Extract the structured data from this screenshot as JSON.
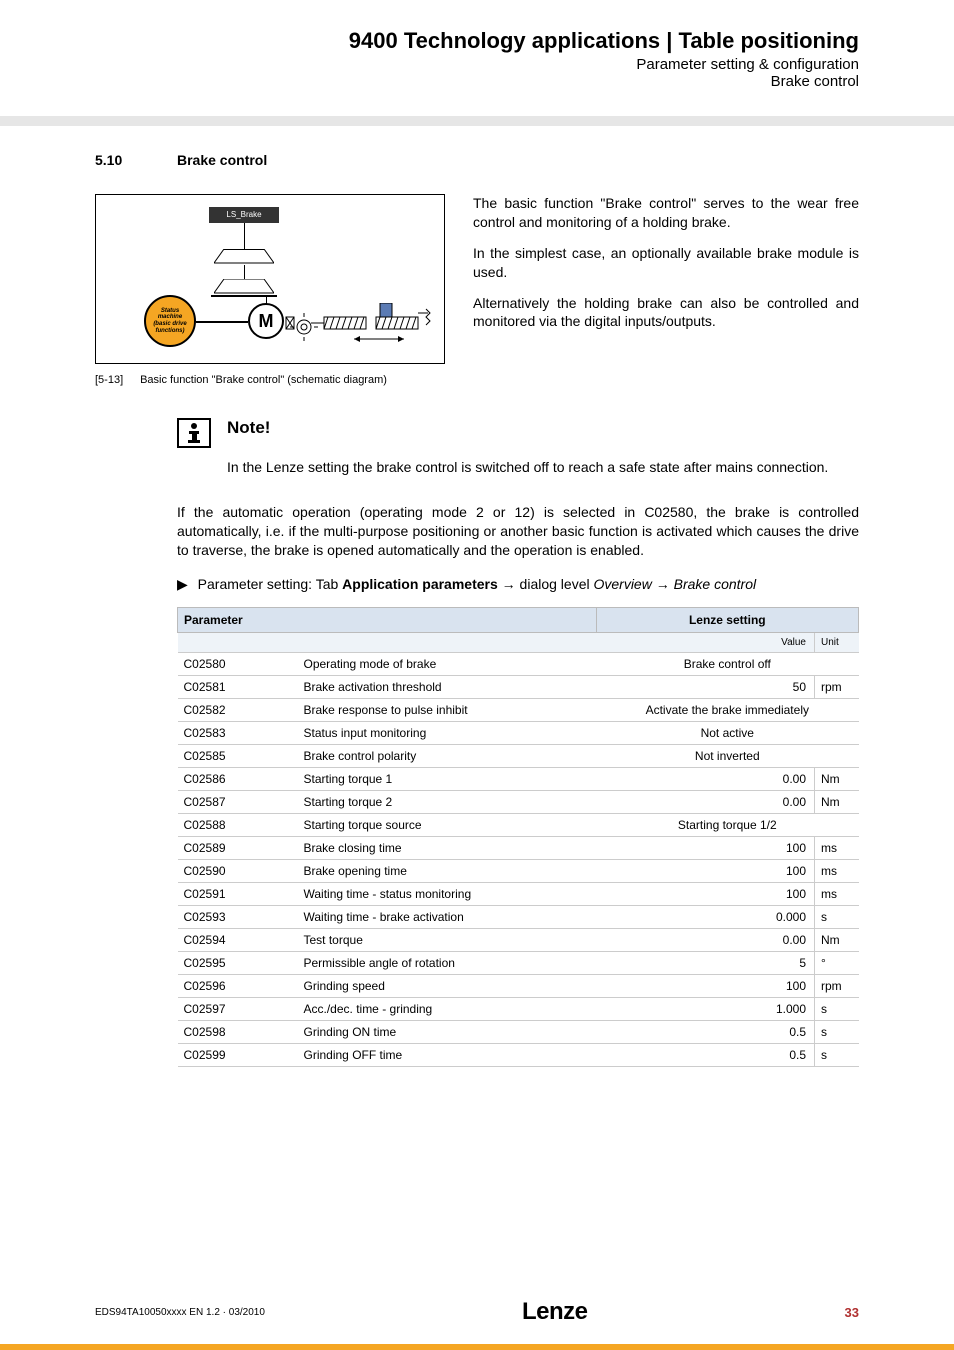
{
  "header": {
    "title": "9400 Technology applications | Table positioning",
    "sub1": "Parameter setting & configuration",
    "sub2": "Brake control"
  },
  "section": {
    "num": "5.10",
    "title": "Brake control"
  },
  "diagram": {
    "ls_brake": "LS_Brake",
    "motor": "M",
    "status_lines": [
      "Status",
      "machine",
      "(basic drive",
      "functions)"
    ]
  },
  "caption": {
    "num": "[5-13]",
    "text": "Basic function \"Brake control\" (schematic diagram)"
  },
  "intro": {
    "p1": "The basic function \"Brake control\" serves to the wear free control and monitoring of a holding brake.",
    "p2": "In the simplest case, an optionally available brake module is used.",
    "p3": "Alternatively the holding brake can also be controlled and monitored via the digital inputs/outputs."
  },
  "note": {
    "title": "Note!",
    "text": "In the Lenze setting the brake control is switched off to reach a safe state after mains connection."
  },
  "body_p": "If the automatic operation (operating mode 2 or 12) is selected in C02580, the brake is controlled automatically, i.e. if the multi-purpose positioning or another basic function is activated which causes the drive to traverse, the brake is opened automatically and the operation is enabled.",
  "param_line": {
    "prefix": "Parameter setting: Tab ",
    "bold": "Application parameters",
    "mid": " dialog level ",
    "it1": "Overview",
    "it2": "Brake control"
  },
  "table": {
    "h_param": "Parameter",
    "h_lenze": "Lenze setting",
    "h_value": "Value",
    "h_unit": "Unit",
    "rows": [
      {
        "code": "C02580",
        "name": "Operating mode of brake",
        "value": "Brake control off",
        "unit": "",
        "span": true
      },
      {
        "code": "C02581",
        "name": "Brake activation threshold",
        "value": "50",
        "unit": "rpm"
      },
      {
        "code": "C02582",
        "name": "Brake response to pulse inhibit",
        "value": "Activate the brake immediately",
        "unit": "",
        "span": true
      },
      {
        "code": "C02583",
        "name": "Status input monitoring",
        "value": "Not active",
        "unit": "",
        "span": true
      },
      {
        "code": "C02585",
        "name": "Brake control polarity",
        "value": "Not inverted",
        "unit": "",
        "span": true
      },
      {
        "code": "C02586",
        "name": "Starting torque 1",
        "value": "0.00",
        "unit": "Nm"
      },
      {
        "code": "C02587",
        "name": "Starting torque 2",
        "value": "0.00",
        "unit": "Nm"
      },
      {
        "code": "C02588",
        "name": "Starting torque source",
        "value": "Starting torque 1/2",
        "unit": "",
        "span": true
      },
      {
        "code": "C02589",
        "name": "Brake closing time",
        "value": "100",
        "unit": "ms"
      },
      {
        "code": "C02590",
        "name": "Brake opening time",
        "value": "100",
        "unit": "ms"
      },
      {
        "code": "C02591",
        "name": "Waiting time - status monitoring",
        "value": "100",
        "unit": "ms"
      },
      {
        "code": "C02593",
        "name": "Waiting time - brake activation",
        "value": "0.000",
        "unit": "s"
      },
      {
        "code": "C02594",
        "name": "Test torque",
        "value": "0.00",
        "unit": "Nm"
      },
      {
        "code": "C02595",
        "name": "Permissible angle of rotation",
        "value": "5",
        "unit": "°"
      },
      {
        "code": "C02596",
        "name": "Grinding speed",
        "value": "100",
        "unit": "rpm"
      },
      {
        "code": "C02597",
        "name": "Acc./dec. time - grinding",
        "value": "1.000",
        "unit": "s"
      },
      {
        "code": "C02598",
        "name": "Grinding ON time",
        "value": "0.5",
        "unit": "s"
      },
      {
        "code": "C02599",
        "name": "Grinding OFF time",
        "value": "0.5",
        "unit": "s"
      }
    ]
  },
  "footer": {
    "left": "EDS94TA10050xxxx EN 1.2 · 03/2010",
    "logo": "Lenze",
    "page": "33"
  },
  "colors": {
    "header_grey": "#e6e6e6",
    "table_header": "#d9e3ef",
    "orange": "#f5a623",
    "page_red": "#b03030"
  }
}
